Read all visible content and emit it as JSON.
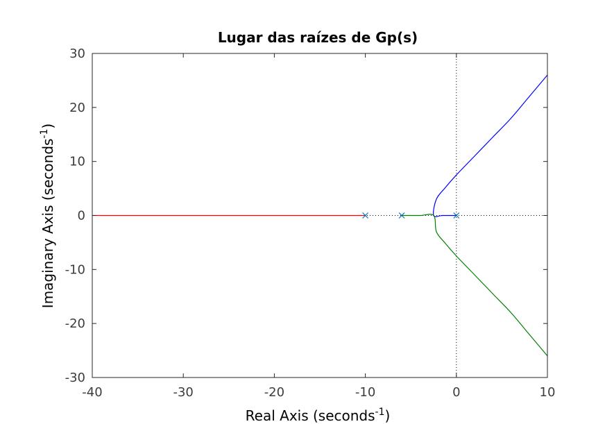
{
  "chart_data": {
    "type": "line",
    "title": "Lugar das raízes de Gp(s)",
    "xlabel": "Real Axis (seconds",
    "xlabel_sup": "-1",
    "xlabel_end": ")",
    "ylabel": "Imaginary Axis (seconds",
    "ylabel_sup": "-1",
    "ylabel_end": ")",
    "xlim": [
      -40,
      10
    ],
    "ylim": [
      -30,
      30
    ],
    "xticks": [
      -40,
      -30,
      -20,
      -10,
      0,
      10
    ],
    "yticks": [
      -30,
      -20,
      -10,
      0,
      10,
      20,
      30
    ],
    "xtick_labels": [
      "-40",
      "-30",
      "-20",
      "-10",
      "0",
      "10"
    ],
    "ytick_labels": [
      "-30",
      "-20",
      "-10",
      "0",
      "10",
      "20",
      "30"
    ],
    "grid": false,
    "poles": [
      [
        -10,
        0
      ],
      [
        -6,
        0
      ],
      [
        0,
        0
      ]
    ],
    "series": [
      {
        "color": "#ff0000",
        "points": [
          [
            -10,
            0
          ],
          [
            -20,
            0
          ],
          [
            -30,
            0
          ],
          [
            -40,
            0
          ]
        ]
      },
      {
        "color": "#0000ff",
        "points": [
          [
            0,
            0
          ],
          [
            -1.5,
            0
          ],
          [
            -2.5,
            0
          ],
          [
            -2.2,
            3
          ],
          [
            -1.3,
            5
          ],
          [
            0,
            7.5
          ],
          [
            2,
            11
          ],
          [
            4,
            14.5
          ],
          [
            6,
            18
          ],
          [
            8,
            22
          ],
          [
            10,
            26
          ]
        ]
      },
      {
        "color": "#008000",
        "points": [
          [
            -6,
            0
          ],
          [
            -4,
            0
          ],
          [
            -2.5,
            0
          ],
          [
            -2.2,
            -3
          ],
          [
            -1.3,
            -5
          ],
          [
            0,
            -7.5
          ],
          [
            2,
            -11
          ],
          [
            4,
            -14.5
          ],
          [
            6,
            -18
          ],
          [
            8,
            -22
          ],
          [
            10,
            -26
          ]
        ]
      }
    ],
    "colors": {
      "pole_marker": "#0072bd",
      "axis": "#262626",
      "zero_lines": "#000000"
    }
  }
}
